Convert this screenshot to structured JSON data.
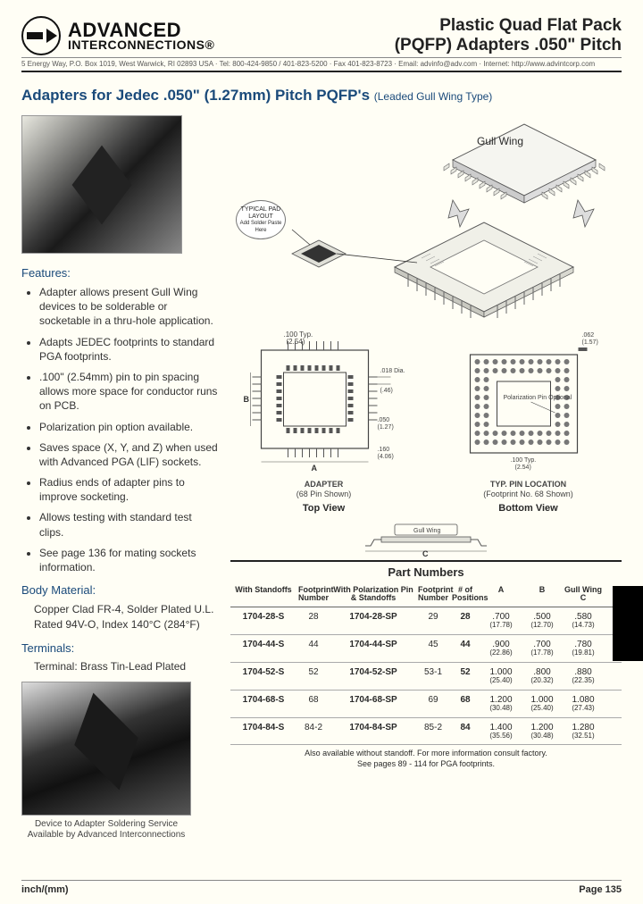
{
  "header": {
    "logo_line1": "ADVANCED",
    "logo_line2": "INTERCONNECTIONS®",
    "title_line1": "Plastic Quad Flat Pack",
    "title_line2": "(PQFP) Adapters .050\" Pitch",
    "contact": "5 Energy Way, P.O. Box 1019, West Warwick, RI 02893 USA · Tel: 800-424-9850 / 401-823-5200 · Fax 401-823-8723 · Email: advinfo@adv.com · Internet: http://www.advintcorp.com"
  },
  "subtitle_main": "Adapters for Jedec .050\" (1.27mm) Pitch PQFP's",
  "subtitle_note": "(Leaded Gull Wing Type)",
  "features_head": "Features:",
  "features": [
    "Adapter allows present Gull Wing devices to be solderable or socketable in a thru-hole application.",
    "Adapts JEDEC footprints to standard PGA footprints.",
    ".100\" (2.54mm) pin to pin spacing allows more space for conductor runs on PCB.",
    "Polarization pin option available.",
    "Saves space (X, Y, and Z) when used with Advanced PGA (LIF) sockets.",
    "Radius ends of adapter pins to improve socketing.",
    "Allows testing with standard test clips.",
    "See page 136 for mating sockets information."
  ],
  "body_mat_head": "Body Material:",
  "body_mat": "Copper Clad FR-4, Solder Plated U.L. Rated 94V-O, Index 140°C (284°F)",
  "term_head": "Terminals:",
  "term": "Terminal: Brass Tin-Lead Plated",
  "service_caption": "Device to Adapter Soldering Service Available by Advanced Interconnections",
  "diagram": {
    "gull_wing": "Gull Wing",
    "pad_layout": "TYPICAL PAD LAYOUT",
    "pad_sub": "Add Solder Paste Here",
    "top_spacing": ".100 Typ.",
    "top_spacing_mm": "(2.54)",
    "dia_val": ".018 Dia.",
    "dia_mm": "(.46)",
    "pitch_val": ".050",
    "pitch_mm": "(1.27)",
    "ext_val": ".160",
    "ext_mm": "(4.06)",
    "thick_val": ".062",
    "thick_mm": "(1.57)",
    "adapter_caption": "ADAPTER",
    "adapter_sub": "(68 Pin Shown)",
    "pol_caption": "Polarization Pin Optional",
    "bot_spacing": ".100 Typ.",
    "bot_spacing_mm": "(2.54)",
    "pin_loc": "TYP. PIN LOCATION",
    "pin_loc_sub": "(Footprint No. 68 Shown)",
    "top_view": "Top View",
    "bottom_view": "Bottom View",
    "gull_prof": "Gull Wing",
    "dim_a": "A",
    "dim_b": "B",
    "dim_c": "C"
  },
  "table": {
    "title": "Part Numbers",
    "headers": {
      "ws": "With Standoffs",
      "fn": "Footprint Number",
      "wp": "With Polarization Pin & Standoffs",
      "fn2": "Footprint Number",
      "np": "# of Positions",
      "a": "A",
      "b": "B",
      "c": "Gull Wing C"
    },
    "rows": [
      {
        "ws": "1704-28-S",
        "fn": "28",
        "wp": "1704-28-SP",
        "fn2": "29",
        "np": "28",
        "a": ".700",
        "am": "(17.78)",
        "b": ".500",
        "bm": "(12.70)",
        "c": ".580",
        "cm": "(14.73)"
      },
      {
        "ws": "1704-44-S",
        "fn": "44",
        "wp": "1704-44-SP",
        "fn2": "45",
        "np": "44",
        "a": ".900",
        "am": "(22.86)",
        "b": ".700",
        "bm": "(17.78)",
        "c": ".780",
        "cm": "(19.81)"
      },
      {
        "ws": "1704-52-S",
        "fn": "52",
        "wp": "1704-52-SP",
        "fn2": "53-1",
        "np": "52",
        "a": "1.000",
        "am": "(25.40)",
        "b": ".800",
        "bm": "(20.32)",
        "c": ".880",
        "cm": "(22.35)"
      },
      {
        "ws": "1704-68-S",
        "fn": "68",
        "wp": "1704-68-SP",
        "fn2": "69",
        "np": "68",
        "a": "1.200",
        "am": "(30.48)",
        "b": "1.000",
        "bm": "(25.40)",
        "c": "1.080",
        "cm": "(27.43)"
      },
      {
        "ws": "1704-84-S",
        "fn": "84-2",
        "wp": "1704-84-SP",
        "fn2": "85-2",
        "np": "84",
        "a": "1.400",
        "am": "(35.56)",
        "b": "1.200",
        "bm": "(30.48)",
        "c": "1.280",
        "cm": "(32.51)"
      }
    ],
    "note1": "Also available without standoff. For more information consult factory.",
    "note2": "See pages 89 - 114 for PGA footprints."
  },
  "footer": {
    "left": "inch/(mm)",
    "right": "Page 135"
  },
  "colors": {
    "heading": "#1a4a7a",
    "text": "#2a2a2a",
    "bg": "#fffef5"
  }
}
